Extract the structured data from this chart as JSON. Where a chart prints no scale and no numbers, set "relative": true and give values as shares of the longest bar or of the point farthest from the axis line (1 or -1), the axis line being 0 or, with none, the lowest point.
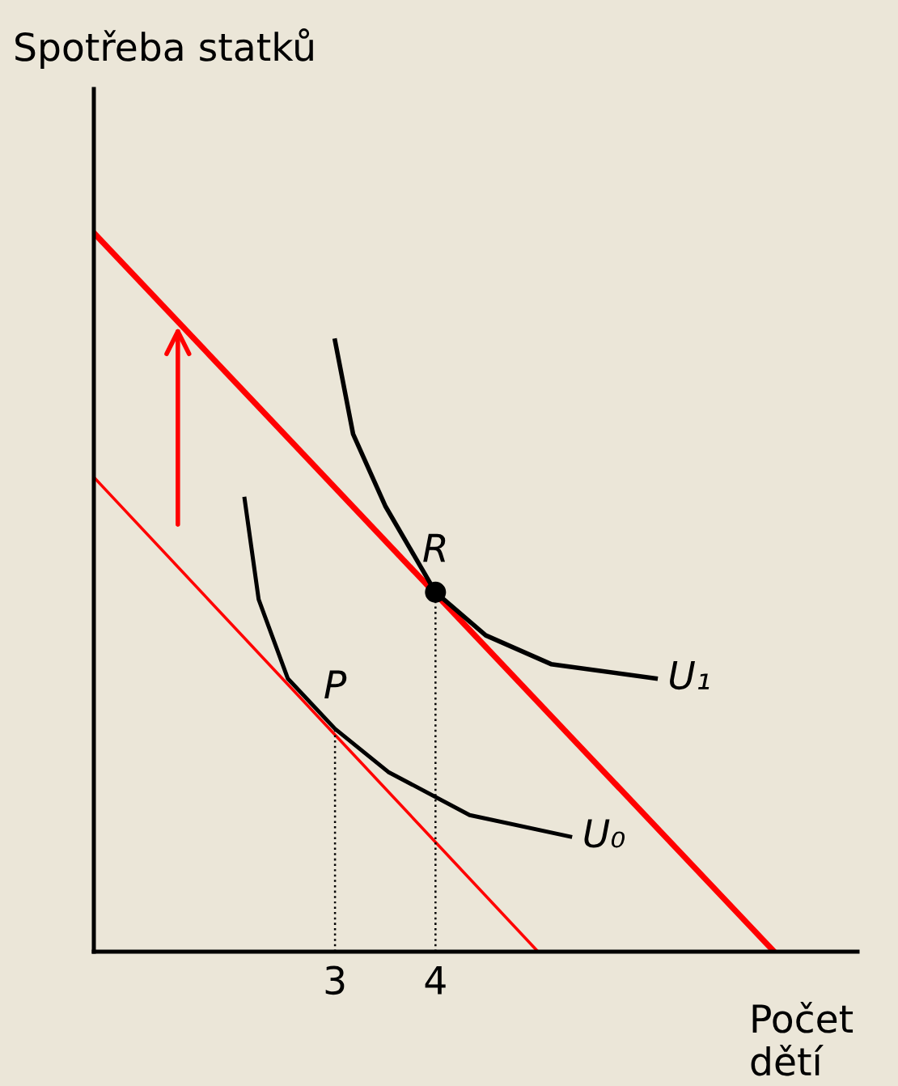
{
  "chart_data": {
    "type": "line",
    "relative": true,
    "xlabel": "Počet dětí",
    "ylabel": "Spotřeba statků",
    "xlim": [
      0.6,
      8.2
    ],
    "xticks": [
      3,
      4
    ],
    "tick_labels": "x",
    "grid": false,
    "legend": false,
    "marker": "none",
    "series": [
      {
        "color": "#ff0000",
        "x": [
          0.6,
          7.37
        ],
        "values": [
          1,
          0
        ]
      },
      {
        "color": "#ff0000",
        "x": [
          0.6,
          5.02
        ],
        "values": [
          0.66,
          0
        ]
      },
      {
        "name": "U₁",
        "color": "#000000",
        "x": [
          3.0,
          3.18,
          3.5,
          4.0,
          4.5,
          5.15,
          6.19
        ],
        "values": [
          0.85,
          0.72,
          0.62,
          0.5,
          0.44,
          0.4,
          0.38
        ]
      },
      {
        "name": "U₀",
        "color": "#000000",
        "x": [
          2.1,
          2.24,
          2.53,
          3.0,
          3.53,
          4.34,
          5.34
        ],
        "values": [
          0.63,
          0.49,
          0.38,
          0.31,
          0.25,
          0.19,
          0.16
        ]
      },
      {
        "color": "#000000",
        "x": [
          4,
          4
        ],
        "values": [
          0,
          0.5
        ],
        "line_style": "dotted"
      },
      {
        "color": "#000000",
        "x": [
          3,
          3
        ],
        "values": [
          0,
          0.31
        ],
        "line_style": "dotted"
      },
      {
        "type": "scatter",
        "color": "#000000",
        "x": [
          4
        ],
        "values": [
          0.5
        ],
        "marker": "circle"
      }
    ],
    "annotations": [
      {
        "text": "R",
        "x": 4,
        "y": 0.5
      },
      {
        "text": "P",
        "x": 3,
        "y": 0.31
      }
    ]
  }
}
